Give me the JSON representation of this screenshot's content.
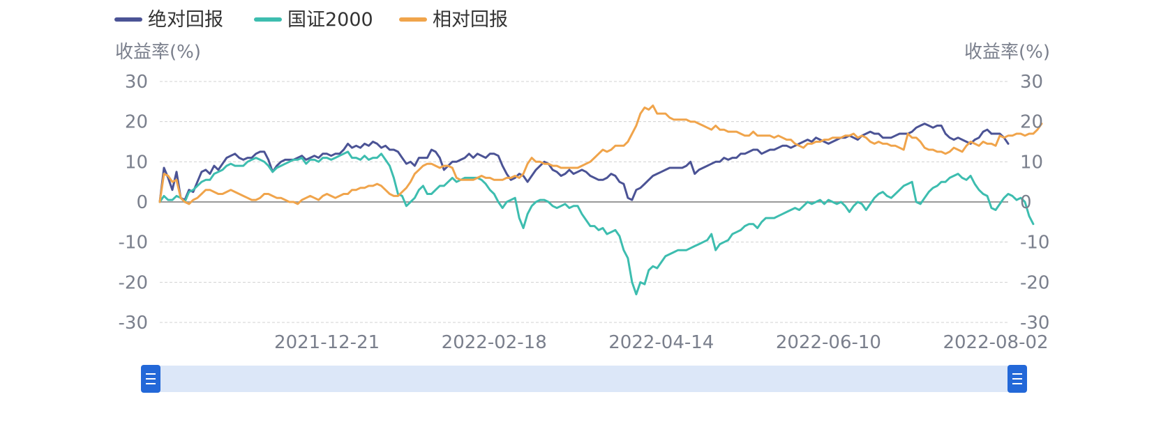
{
  "chart_data": {
    "type": "line",
    "legend": {
      "position": "top-left",
      "items": [
        {
          "name": "绝对回报",
          "color": "#4B5395"
        },
        {
          "name": "国证2000",
          "color": "#3DBDAF"
        },
        {
          "name": "相对回报",
          "color": "#F0A44B"
        }
      ]
    },
    "y_axis_left": {
      "label": "收益率(%)",
      "ticks": [
        "30",
        "20",
        "10",
        "0",
        "-10",
        "-20",
        "-30"
      ],
      "range": [
        -30,
        30
      ]
    },
    "y_axis_right": {
      "label": "收益率(%)",
      "ticks": [
        "30",
        "20",
        "10",
        "0",
        "-10",
        "-20",
        "-30"
      ],
      "range": [
        -30,
        30
      ]
    },
    "x_axis": {
      "ticks": [
        {
          "label": "2021-12-21",
          "index": 40
        },
        {
          "label": "2022-02-18",
          "index": 80
        },
        {
          "label": "2022-04-14",
          "index": 120
        },
        {
          "label": "2022-06-10",
          "index": 160
        },
        {
          "label": "2022-08-02",
          "index": 200
        }
      ]
    },
    "grid": true,
    "series": [
      {
        "name": "绝对回报",
        "color": "#4B5395",
        "values": [
          0,
          8.5,
          6,
          3,
          7.5,
          1,
          0.5,
          3,
          2.5,
          5,
          7.5,
          8,
          7,
          9,
          8,
          9.5,
          11,
          11.5,
          12,
          11,
          10.5,
          11,
          11,
          12,
          12.5,
          12.5,
          10.5,
          7.5,
          9,
          10,
          10.5,
          10.5,
          10.5,
          11,
          11.5,
          10.5,
          11,
          11.5,
          11,
          12,
          12,
          11.5,
          12,
          12,
          13,
          14.5,
          13.5,
          14,
          13.5,
          14.5,
          14,
          15,
          14.5,
          13.5,
          14,
          13,
          13,
          12.5,
          11,
          9.5,
          10,
          9,
          11,
          11,
          11,
          13,
          12.5,
          11,
          8,
          9,
          10,
          10,
          10.5,
          11,
          12,
          11,
          12,
          11.5,
          11,
          12,
          12,
          11.5,
          9,
          7,
          5.5,
          6,
          7,
          6.5,
          5,
          6.5,
          8,
          9,
          10,
          9.5,
          8,
          7.5,
          6.5,
          7,
          8,
          7,
          7.5,
          8,
          7.5,
          6.5,
          6,
          5.5,
          5.5,
          6,
          7,
          6.5,
          5,
          4.5,
          1,
          0.5,
          3,
          3.5,
          4.5,
          5.5,
          6.5,
          7,
          7.5,
          8,
          8.5,
          8.5,
          8.5,
          8.5,
          9,
          10,
          7,
          8,
          8.5,
          9,
          9.5,
          10,
          10,
          11,
          10.5,
          11,
          11,
          12,
          12,
          12.5,
          13,
          13,
          12,
          12.5,
          13,
          13,
          13.5,
          14,
          14,
          13.5,
          14,
          14.5,
          15,
          15.5,
          15,
          16,
          15.5,
          15,
          14.5,
          15,
          15.5,
          16,
          16,
          16.5,
          16,
          15.5,
          16.5,
          17,
          17.5,
          17,
          17,
          16,
          16,
          16,
          16.5,
          17,
          17,
          17,
          17.5,
          18.5,
          19,
          19.5,
          19,
          18.5,
          19,
          19,
          17,
          16,
          15.5,
          16,
          15.5,
          15,
          14.5,
          15.5,
          16,
          17.5,
          18,
          17,
          17,
          17,
          16,
          14.5
        ]
      },
      {
        "name": "国证2000",
        "color": "#3DBDAF",
        "values": [
          0,
          1.5,
          0.5,
          0.5,
          1.5,
          1,
          0,
          2.5,
          3,
          4,
          5,
          5.5,
          5.5,
          7,
          7.5,
          8,
          9,
          9.5,
          9,
          9,
          9,
          10,
          10.5,
          11,
          10.5,
          10,
          9,
          7.5,
          8.5,
          9,
          9.5,
          10,
          10.5,
          10.5,
          11,
          9.5,
          10.5,
          10.5,
          10,
          11,
          11,
          10.5,
          11,
          11.5,
          12,
          12.5,
          11,
          11,
          10.5,
          11.5,
          10.5,
          11,
          11,
          12,
          10.5,
          9,
          6,
          2,
          1.5,
          -1,
          0,
          1,
          3,
          4,
          2,
          2,
          3,
          4,
          4,
          5,
          6,
          5,
          5.5,
          6,
          6,
          6,
          6,
          5.5,
          4.5,
          3,
          2,
          0,
          -1.5,
          0,
          0.5,
          1,
          -4,
          -6.5,
          -3,
          -1,
          0,
          0.5,
          0.5,
          0,
          -1,
          -1.5,
          -1,
          -0.5,
          -1.5,
          -1,
          -1,
          -3,
          -4.5,
          -6,
          -6,
          -7,
          -6.5,
          -8,
          -7.5,
          -7,
          -8.5,
          -12,
          -14,
          -20,
          -23,
          -20,
          -20.5,
          -17,
          -16,
          -16.5,
          -15,
          -13.5,
          -13,
          -12.5,
          -12,
          -12,
          -12,
          -11.5,
          -11,
          -10.5,
          -10,
          -9.5,
          -8,
          -12,
          -10.5,
          -10,
          -9.5,
          -8,
          -7.5,
          -7,
          -6,
          -5.5,
          -5.5,
          -6.5,
          -5,
          -4,
          -4,
          -4,
          -3.5,
          -3,
          -2.5,
          -2,
          -1.5,
          -2,
          -1,
          0,
          -0.5,
          0,
          0.5,
          -0.5,
          0.5,
          0,
          -0.5,
          0,
          -1,
          -2.5,
          -1,
          0,
          -0.5,
          -2,
          -0.5,
          1,
          2,
          2.5,
          1.5,
          1,
          2,
          3,
          4,
          4.5,
          5,
          0,
          -0.5,
          1,
          2.5,
          3.5,
          4,
          5,
          5,
          6,
          6.5,
          7,
          6,
          5.5,
          6.5,
          4.5,
          3,
          2,
          1.5,
          -1.5,
          -2,
          -0.5,
          1,
          2,
          1.5,
          0.5,
          1,
          0,
          -3.5,
          -5.5
        ]
      },
      {
        "name": "相对回报",
        "color": "#F0A44B",
        "values": [
          0,
          7,
          6.5,
          5,
          5.5,
          1,
          0,
          -0.5,
          0.5,
          1,
          2,
          3,
          3,
          2.5,
          2,
          2,
          2.5,
          3,
          2.5,
          2,
          1.5,
          1,
          0.5,
          0.5,
          1,
          2,
          2,
          1.5,
          1,
          1,
          0.5,
          0,
          0,
          -0.5,
          0.5,
          1,
          1.5,
          1,
          0.5,
          1.5,
          2,
          1.5,
          1,
          1.5,
          2,
          2,
          3,
          3,
          3.5,
          3.5,
          4,
          4,
          4.5,
          4,
          3,
          2,
          1.5,
          1.5,
          2.5,
          3.5,
          5,
          7,
          8,
          9,
          9.5,
          9.5,
          9,
          8.5,
          9,
          9,
          8.5,
          6,
          5.5,
          5.5,
          5.5,
          5.5,
          6,
          6.5,
          6,
          6,
          5.5,
          5.5,
          5.5,
          6,
          6,
          6.5,
          6,
          7,
          9.5,
          11,
          10,
          10,
          9.5,
          9.5,
          9,
          9,
          8.5,
          8.5,
          8.5,
          8.5,
          8.5,
          9,
          9.5,
          10,
          11,
          12,
          13,
          12.5,
          13,
          14,
          14,
          14,
          15,
          17,
          19,
          22,
          23.5,
          23,
          24,
          22,
          22,
          22,
          21,
          20.5,
          20.5,
          20.5,
          20.5,
          20,
          20,
          19.5,
          19,
          18.5,
          18,
          19,
          18,
          18,
          17.5,
          17.5,
          17.5,
          17,
          16.5,
          16.5,
          17.5,
          16.5,
          16.5,
          16.5,
          16.5,
          16,
          16.5,
          16,
          15.5,
          15.5,
          14.5,
          14,
          13.5,
          14.5,
          14.5,
          15,
          15,
          15.5,
          15.5,
          16,
          16,
          16,
          16.5,
          16.5,
          17,
          16,
          16.5,
          16,
          15,
          14.5,
          15,
          14.5,
          14.5,
          14,
          14,
          13.5,
          13,
          17,
          16,
          16,
          15,
          13.5,
          13,
          13,
          12.5,
          12.5,
          12,
          12.5,
          13.5,
          13,
          12.5,
          14,
          15,
          14.5,
          14,
          15,
          14.5,
          14.5,
          14,
          16.5,
          16,
          16.5,
          16.5,
          17,
          17,
          16.5,
          17,
          17,
          18,
          19.5
        ]
      }
    ],
    "slider": {
      "range_start": 0,
      "range_end": 100
    }
  }
}
